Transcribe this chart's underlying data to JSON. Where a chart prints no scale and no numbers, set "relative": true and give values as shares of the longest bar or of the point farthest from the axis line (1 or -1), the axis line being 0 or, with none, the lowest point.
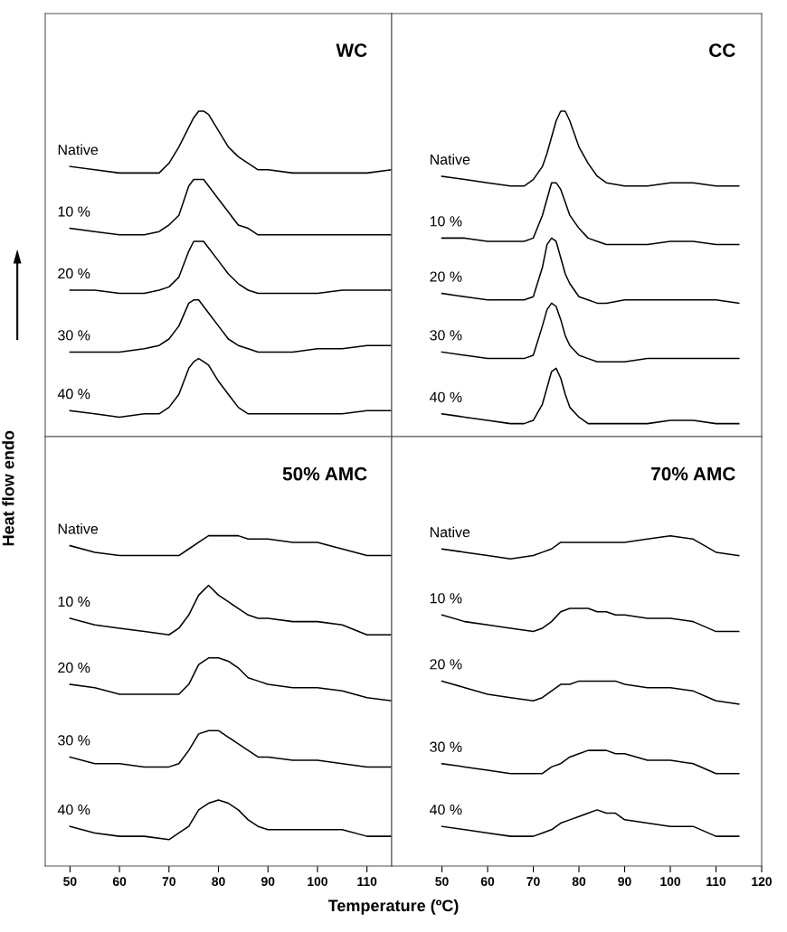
{
  "chart_data": [
    {
      "type": "line",
      "title": "WC",
      "ylabel": "Heat flow endo",
      "relative": true,
      "tick_labels": false,
      "xlim": [
        45,
        115
      ],
      "xticks": [
        50,
        60,
        70,
        80,
        90,
        100,
        110
      ],
      "x": [
        50,
        55,
        60,
        65,
        68,
        70,
        72,
        74,
        75,
        76,
        77,
        78,
        80,
        82,
        84,
        86,
        88,
        90,
        95,
        100,
        105,
        110,
        115
      ],
      "series": [
        {
          "name": "Native",
          "color": "#000000",
          "values": [
            0.83,
            0.82,
            0.81,
            0.81,
            0.81,
            0.84,
            0.89,
            0.95,
            0.98,
            1.0,
            1.0,
            0.99,
            0.94,
            0.89,
            0.86,
            0.84,
            0.82,
            0.82,
            0.81,
            0.81,
            0.81,
            0.81,
            0.82
          ]
        },
        {
          "name": "10 %",
          "color": "#000000",
          "values": [
            0.64,
            0.63,
            0.62,
            0.62,
            0.63,
            0.65,
            0.68,
            0.77,
            0.79,
            0.79,
            0.79,
            0.77,
            0.73,
            0.69,
            0.65,
            0.64,
            0.62,
            0.62,
            0.62,
            0.62,
            0.62,
            0.62,
            0.62
          ]
        },
        {
          "name": "20 %",
          "color": "#000000",
          "values": [
            0.45,
            0.45,
            0.44,
            0.44,
            0.45,
            0.46,
            0.49,
            0.57,
            0.6,
            0.6,
            0.6,
            0.58,
            0.54,
            0.5,
            0.47,
            0.45,
            0.44,
            0.44,
            0.44,
            0.44,
            0.45,
            0.45,
            0.45
          ]
        },
        {
          "name": "30 %",
          "color": "#000000",
          "values": [
            0.26,
            0.26,
            0.26,
            0.27,
            0.28,
            0.3,
            0.34,
            0.41,
            0.42,
            0.42,
            0.4,
            0.38,
            0.34,
            0.3,
            0.28,
            0.27,
            0.26,
            0.26,
            0.26,
            0.27,
            0.27,
            0.28,
            0.28
          ]
        },
        {
          "name": "40 %",
          "color": "#000000",
          "values": [
            0.08,
            0.07,
            0.06,
            0.07,
            0.07,
            0.09,
            0.13,
            0.21,
            0.23,
            0.24,
            0.23,
            0.22,
            0.17,
            0.13,
            0.09,
            0.07,
            0.07,
            0.07,
            0.07,
            0.07,
            0.07,
            0.08,
            0.08
          ]
        }
      ]
    },
    {
      "type": "line",
      "title": "CC",
      "relative": true,
      "tick_labels": false,
      "xlim": [
        39,
        120
      ],
      "xticks": [
        50,
        60,
        70,
        80,
        90,
        100,
        110,
        120
      ],
      "x": [
        50,
        55,
        60,
        65,
        68,
        70,
        72,
        73,
        74,
        75,
        76,
        77,
        78,
        80,
        82,
        84,
        86,
        90,
        95,
        100,
        105,
        110,
        115
      ],
      "series": [
        {
          "name": "Native",
          "color": "#000000",
          "values": [
            0.8,
            0.79,
            0.78,
            0.77,
            0.77,
            0.79,
            0.83,
            0.87,
            0.92,
            0.97,
            1.0,
            1.0,
            0.97,
            0.89,
            0.84,
            0.8,
            0.78,
            0.77,
            0.77,
            0.78,
            0.78,
            0.77,
            0.77
          ]
        },
        {
          "name": "10 %",
          "color": "#000000",
          "values": [
            0.61,
            0.61,
            0.6,
            0.6,
            0.6,
            0.61,
            0.68,
            0.73,
            0.78,
            0.78,
            0.76,
            0.72,
            0.68,
            0.64,
            0.61,
            0.6,
            0.59,
            0.59,
            0.59,
            0.6,
            0.6,
            0.59,
            0.59
          ]
        },
        {
          "name": "20 %",
          "color": "#000000",
          "values": [
            0.44,
            0.43,
            0.42,
            0.42,
            0.42,
            0.43,
            0.52,
            0.59,
            0.61,
            0.6,
            0.55,
            0.5,
            0.47,
            0.43,
            0.42,
            0.41,
            0.41,
            0.42,
            0.42,
            0.42,
            0.42,
            0.42,
            0.41
          ]
        },
        {
          "name": "30 %",
          "color": "#000000",
          "values": [
            0.26,
            0.25,
            0.24,
            0.24,
            0.24,
            0.25,
            0.34,
            0.39,
            0.41,
            0.4,
            0.36,
            0.31,
            0.28,
            0.25,
            0.24,
            0.23,
            0.23,
            0.23,
            0.24,
            0.24,
            0.24,
            0.24,
            0.24
          ]
        },
        {
          "name": "40 %",
          "color": "#000000",
          "values": [
            0.07,
            0.06,
            0.05,
            0.04,
            0.04,
            0.05,
            0.1,
            0.15,
            0.2,
            0.21,
            0.18,
            0.13,
            0.09,
            0.06,
            0.04,
            0.04,
            0.04,
            0.04,
            0.04,
            0.05,
            0.05,
            0.04,
            0.04
          ]
        }
      ]
    },
    {
      "type": "line",
      "title": "50% AMC",
      "xlabel": "Temperature (ºC)",
      "relative": true,
      "tick_labels": "x",
      "xlim": [
        45,
        115
      ],
      "xticks": [
        50,
        60,
        70,
        80,
        90,
        100,
        110
      ],
      "x": [
        50,
        55,
        60,
        65,
        70,
        72,
        74,
        76,
        78,
        80,
        82,
        84,
        86,
        88,
        90,
        95,
        100,
        105,
        110,
        115
      ],
      "series": [
        {
          "name": "Native",
          "color": "#000000",
          "values": [
            0.97,
            0.95,
            0.94,
            0.94,
            0.94,
            0.94,
            0.96,
            0.98,
            1.0,
            1.0,
            1.0,
            1.0,
            0.99,
            0.99,
            0.99,
            0.98,
            0.98,
            0.96,
            0.94,
            0.94
          ]
        },
        {
          "name": "10 %",
          "color": "#000000",
          "values": [
            0.75,
            0.73,
            0.72,
            0.71,
            0.7,
            0.72,
            0.76,
            0.82,
            0.85,
            0.82,
            0.8,
            0.78,
            0.76,
            0.75,
            0.75,
            0.74,
            0.74,
            0.73,
            0.7,
            0.7
          ]
        },
        {
          "name": "20 %",
          "color": "#000000",
          "values": [
            0.55,
            0.54,
            0.52,
            0.52,
            0.52,
            0.52,
            0.55,
            0.61,
            0.63,
            0.63,
            0.62,
            0.6,
            0.57,
            0.56,
            0.55,
            0.54,
            0.54,
            0.53,
            0.51,
            0.5
          ]
        },
        {
          "name": "30 %",
          "color": "#000000",
          "values": [
            0.33,
            0.31,
            0.31,
            0.3,
            0.3,
            0.31,
            0.35,
            0.4,
            0.41,
            0.41,
            0.39,
            0.37,
            0.35,
            0.33,
            0.33,
            0.32,
            0.32,
            0.31,
            0.3,
            0.3
          ]
        },
        {
          "name": "40 %",
          "color": "#000000",
          "values": [
            0.12,
            0.1,
            0.09,
            0.09,
            0.08,
            0.1,
            0.12,
            0.17,
            0.19,
            0.2,
            0.19,
            0.17,
            0.14,
            0.12,
            0.11,
            0.11,
            0.11,
            0.11,
            0.09,
            0.09
          ]
        }
      ]
    },
    {
      "type": "line",
      "title": "70% AMC",
      "relative": true,
      "tick_labels": "x",
      "xlim": [
        39,
        120
      ],
      "xticks": [
        50,
        60,
        70,
        80,
        90,
        100,
        110,
        120
      ],
      "x": [
        50,
        55,
        60,
        65,
        70,
        72,
        74,
        76,
        78,
        80,
        82,
        84,
        86,
        88,
        90,
        95,
        100,
        105,
        110,
        115
      ],
      "series": [
        {
          "name": "Native",
          "color": "#000000",
          "values": [
            0.96,
            0.95,
            0.94,
            0.93,
            0.94,
            0.95,
            0.96,
            0.98,
            0.98,
            0.98,
            0.98,
            0.98,
            0.98,
            0.98,
            0.98,
            0.99,
            1.0,
            0.99,
            0.95,
            0.94
          ]
        },
        {
          "name": "10 %",
          "color": "#000000",
          "values": [
            0.76,
            0.74,
            0.73,
            0.72,
            0.71,
            0.72,
            0.74,
            0.77,
            0.78,
            0.78,
            0.78,
            0.77,
            0.77,
            0.76,
            0.76,
            0.75,
            0.75,
            0.74,
            0.71,
            0.71
          ]
        },
        {
          "name": "20 %",
          "color": "#000000",
          "values": [
            0.56,
            0.54,
            0.52,
            0.51,
            0.5,
            0.51,
            0.53,
            0.55,
            0.55,
            0.56,
            0.56,
            0.56,
            0.56,
            0.56,
            0.55,
            0.54,
            0.54,
            0.53,
            0.5,
            0.49
          ]
        },
        {
          "name": "30 %",
          "color": "#000000",
          "values": [
            0.31,
            0.3,
            0.29,
            0.28,
            0.28,
            0.28,
            0.3,
            0.31,
            0.33,
            0.34,
            0.35,
            0.35,
            0.35,
            0.34,
            0.34,
            0.32,
            0.32,
            0.31,
            0.28,
            0.28
          ]
        },
        {
          "name": "40 %",
          "color": "#000000",
          "values": [
            0.12,
            0.11,
            0.1,
            0.09,
            0.09,
            0.1,
            0.11,
            0.13,
            0.14,
            0.15,
            0.16,
            0.17,
            0.16,
            0.16,
            0.14,
            0.13,
            0.12,
            0.12,
            0.09,
            0.09
          ]
        }
      ]
    }
  ]
}
